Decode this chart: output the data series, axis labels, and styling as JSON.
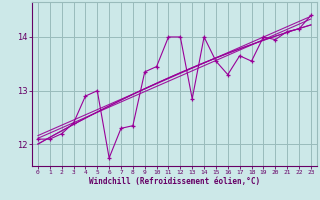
{
  "xlabel": "Windchill (Refroidissement éolien,°C)",
  "x_values": [
    0,
    1,
    2,
    3,
    4,
    5,
    6,
    7,
    8,
    9,
    10,
    11,
    12,
    13,
    14,
    15,
    16,
    17,
    18,
    19,
    20,
    21,
    22,
    23
  ],
  "y_zigzag": [
    12.1,
    12.1,
    12.2,
    12.4,
    12.9,
    13.0,
    11.75,
    12.3,
    12.35,
    13.35,
    13.45,
    14.0,
    14.0,
    12.85,
    14.0,
    13.55,
    13.3,
    13.65,
    13.55,
    14.0,
    13.95,
    14.1,
    14.15,
    14.4
  ],
  "bg_color": "#cce8e8",
  "line_color": "#990099",
  "grid_color": "#99bbbb",
  "text_color": "#660066",
  "ylim": [
    11.6,
    14.65
  ],
  "xlim": [
    -0.5,
    23.5
  ],
  "yticks": [
    12,
    13,
    14
  ],
  "xticks": [
    0,
    1,
    2,
    3,
    4,
    5,
    6,
    7,
    8,
    9,
    10,
    11,
    12,
    13,
    14,
    15,
    16,
    17,
    18,
    19,
    20,
    21,
    22,
    23
  ]
}
